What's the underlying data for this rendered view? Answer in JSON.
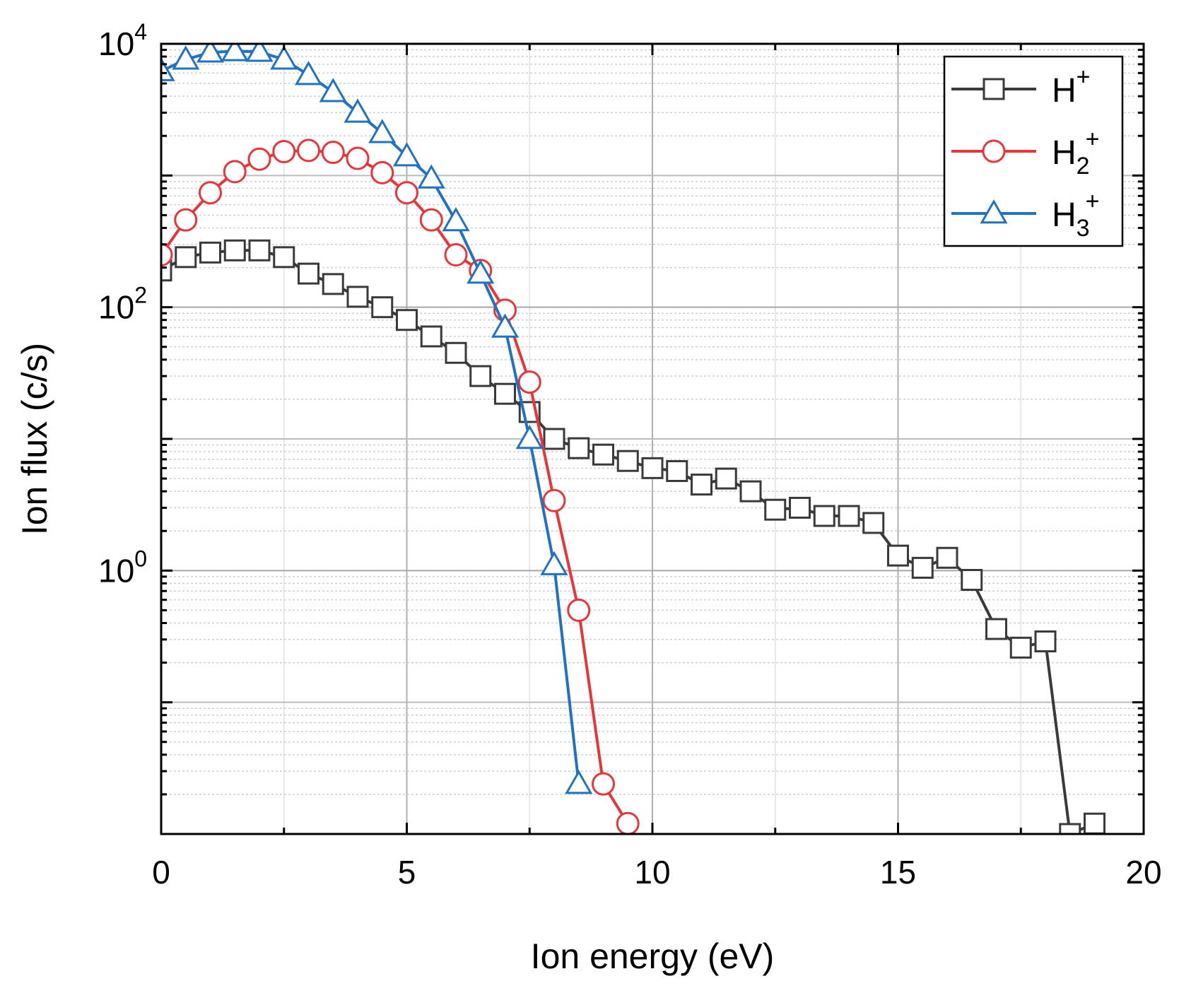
{
  "chart_data": {
    "type": "line",
    "title": "",
    "xlabel": "Ion energy (eV)",
    "ylabel": "Ion flux (c/s)",
    "x_scale": "linear",
    "y_scale": "log",
    "xlim": [
      0,
      20
    ],
    "ylim": [
      0.01,
      10000
    ],
    "x_ticks": [
      0,
      5,
      10,
      15,
      20
    ],
    "y_tick_labels": [
      {
        "value": 10000,
        "base": "10",
        "exp": "4"
      },
      {
        "value": 100,
        "base": "10",
        "exp": "2"
      },
      {
        "value": 1,
        "base": "10",
        "exp": "0"
      }
    ],
    "grid": true,
    "legend_position": "top-right",
    "series": [
      {
        "name": "H+",
        "label_base": "H",
        "label_sub": "",
        "label_sup": "+",
        "color": "#3a3a3a",
        "marker": "square",
        "x": [
          0,
          0.5,
          1,
          1.5,
          2,
          2.5,
          3,
          3.5,
          4,
          4.5,
          5,
          5.5,
          6,
          6.5,
          7,
          7.5,
          8,
          8.5,
          9,
          9.5,
          10,
          10.5,
          11,
          11.5,
          12,
          12.5,
          13,
          13.5,
          14,
          14.5,
          15,
          15.5,
          16,
          16.5,
          17,
          17.5,
          18,
          18.5,
          19
        ],
        "y": [
          190,
          240,
          260,
          270,
          270,
          240,
          180,
          150,
          120,
          100,
          80,
          60,
          45,
          30,
          22,
          16,
          10,
          8.5,
          7.6,
          6.8,
          6.0,
          5.7,
          4.5,
          5.0,
          4.0,
          2.9,
          3.0,
          2.6,
          2.6,
          2.3,
          1.3,
          1.05,
          1.25,
          0.85,
          0.36,
          0.26,
          0.29,
          0.01,
          0.012
        ]
      },
      {
        "name": "H2+",
        "label_base": "H",
        "label_sub": "2",
        "label_sup": "+",
        "color": "#e8353a",
        "marker": "circle",
        "x": [
          0,
          0.5,
          1,
          1.5,
          2,
          2.5,
          3,
          3.5,
          4,
          4.5,
          5,
          5.5,
          6,
          6.5,
          7,
          7.5,
          8,
          8.5,
          9,
          9.5
        ],
        "y": [
          250,
          460,
          740,
          1070,
          1330,
          1520,
          1550,
          1500,
          1350,
          1050,
          740,
          460,
          250,
          190,
          95,
          27,
          3.4,
          0.5,
          0.024,
          0.012
        ]
      },
      {
        "name": "H3+",
        "label_base": "H",
        "label_sub": "3",
        "label_sup": "+",
        "color": "#1f72c4",
        "marker": "triangle",
        "x": [
          0,
          0.5,
          1,
          1.5,
          2,
          2.5,
          3,
          3.5,
          4,
          4.5,
          5,
          5.5,
          6,
          6.5,
          7,
          7.5,
          8,
          8.5
        ],
        "y": [
          6200,
          7600,
          8600,
          8800,
          8700,
          7600,
          5800,
          4300,
          3000,
          2100,
          1400,
          950,
          450,
          180,
          70,
          10,
          1.1,
          0.024
        ]
      }
    ]
  }
}
